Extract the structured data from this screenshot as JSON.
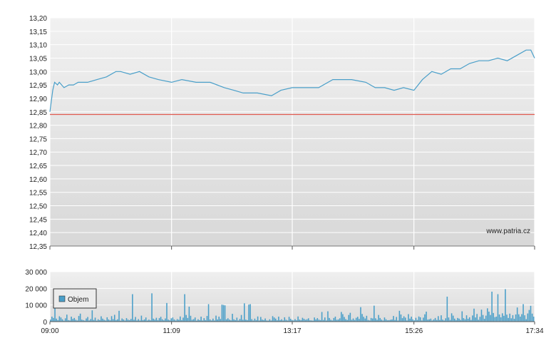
{
  "chart_data": [
    {
      "type": "line",
      "watermark": "www.patria.cz",
      "ylim": [
        12.35,
        13.2
      ],
      "y_ticks": [
        "13,20",
        "13,15",
        "13,10",
        "13,05",
        "13,00",
        "12,95",
        "12,90",
        "12,85",
        "12,80",
        "12,75",
        "12,70",
        "12,65",
        "12,60",
        "12,55",
        "12,50",
        "12,45",
        "12,40",
        "12,35"
      ],
      "x_ticks": [
        "09:00",
        "11:09",
        "13:17",
        "15:26",
        "17:34"
      ],
      "reference_line": 12.84,
      "grid": true,
      "colors": {
        "line": "#4a9fc9",
        "reference": "#e05a4f",
        "grid": "#ffffff"
      },
      "series": [
        {
          "x": [
            "09:00",
            "09:03",
            "09:05",
            "09:08",
            "09:10",
            "09:15",
            "09:20",
            "09:25",
            "09:30",
            "09:40",
            "09:50",
            "10:00",
            "10:10",
            "10:15",
            "10:25",
            "10:35",
            "10:45",
            "10:55",
            "11:09",
            "11:20",
            "11:35",
            "11:50",
            "12:05",
            "12:15",
            "12:25",
            "12:40",
            "12:55",
            "13:05",
            "13:17",
            "13:30",
            "13:45",
            "14:00",
            "14:10",
            "14:20",
            "14:35",
            "14:45",
            "14:55",
            "15:05",
            "15:15",
            "15:26",
            "15:35",
            "15:45",
            "15:55",
            "16:05",
            "16:15",
            "16:25",
            "16:35",
            "16:45",
            "16:55",
            "17:05",
            "17:15",
            "17:25",
            "17:30",
            "17:34"
          ],
          "values": [
            12.85,
            12.93,
            12.96,
            12.95,
            12.96,
            12.94,
            12.95,
            12.95,
            12.96,
            12.96,
            12.97,
            12.98,
            13.0,
            13.0,
            12.99,
            13.0,
            12.98,
            12.97,
            12.96,
            12.97,
            12.96,
            12.96,
            12.94,
            12.93,
            12.92,
            12.92,
            12.91,
            12.93,
            12.94,
            12.94,
            12.94,
            12.97,
            12.97,
            12.97,
            12.96,
            12.94,
            12.94,
            12.93,
            12.94,
            12.93,
            12.97,
            13.0,
            12.99,
            13.01,
            13.01,
            13.03,
            13.04,
            13.04,
            13.05,
            13.04,
            13.06,
            13.08,
            13.08,
            13.05
          ]
        }
      ]
    },
    {
      "type": "bar",
      "ylim": [
        0,
        30000
      ],
      "y_ticks": [
        "30 000",
        "20 000",
        "10 000",
        "0"
      ],
      "x_ticks": [
        "09:00",
        "11:09",
        "13:17",
        "15:26",
        "17:34"
      ],
      "grid": true,
      "colors": {
        "bar": "#4a9fc9",
        "legend_swatch": "#4a9fc9"
      },
      "legend": {
        "label": "Objem",
        "position": "top-left"
      },
      "series": [
        {
          "name": "Objem",
          "x_start": "09:00",
          "x_end": "17:34",
          "values": [
            1200,
            3000,
            2200,
            8800,
            1800,
            900,
            3200,
            2500,
            1400,
            600,
            2000,
            4200,
            900,
            700,
            3000,
            1600,
            2200,
            1100,
            700,
            3400,
            4800,
            1200,
            900,
            600,
            1900,
            2800,
            700,
            1500,
            6800,
            1000,
            2400,
            600,
            1400,
            900,
            3200,
            1800,
            1100,
            700,
            2600,
            1300,
            800,
            3300,
            1500,
            4100,
            900,
            1400,
            6500,
            600,
            1900,
            1300,
            700,
            2100,
            1200,
            900,
            1600,
            16500,
            1100,
            2800,
            700,
            1500,
            700,
            3600,
            900,
            1300,
            2500,
            700,
            1200,
            800,
            17000,
            1800,
            1200,
            2300,
            900,
            2100,
            2900,
            1400,
            800,
            1900,
            11200,
            1200,
            800,
            2000,
            2500,
            1300,
            700,
            1500,
            1100,
            3100,
            900,
            2400,
            16500,
            4000,
            2200,
            9000,
            3500,
            1100,
            1500,
            2500,
            600,
            1400,
            900,
            3000,
            700,
            2100,
            900,
            3400,
            10500,
            1300,
            700,
            1800,
            700,
            3600,
            1300,
            3000,
            1600,
            10200,
            10000,
            9800,
            1400,
            2000,
            1200,
            800,
            4700,
            1400,
            900,
            2400,
            700,
            1600,
            4000,
            1100,
            11000,
            1200,
            900,
            10200,
            10500,
            1500,
            700,
            1800,
            900,
            3100,
            700,
            2800,
            1200,
            900,
            1900,
            700,
            600,
            1400,
            700,
            3300,
            2500,
            1800,
            800,
            3000,
            900,
            1400,
            700,
            2600,
            1100,
            700,
            2900,
            1700,
            1000,
            700,
            1500,
            800,
            3100,
            1200,
            900,
            2300,
            1700,
            1100,
            1400,
            2000,
            800,
            700,
            600,
            2500,
            1300,
            2100,
            1200,
            900,
            5800,
            1000,
            2500,
            700,
            6200,
            2200,
            1100,
            700,
            2200,
            3000,
            1100,
            1300,
            2000,
            5800,
            4500,
            2800,
            1500,
            1000,
            4000,
            5300,
            1100,
            1900,
            1000,
            2300,
            2900,
            1600,
            8700,
            4600,
            2900,
            1900,
            3500,
            1000,
            700,
            2200,
            1900,
            9600,
            2000,
            1100,
            4000,
            2200,
            1200,
            700,
            2500,
            1400,
            800,
            900,
            1100,
            1300,
            3400,
            1000,
            2800,
            700,
            6500,
            4300,
            2100,
            3200,
            2400,
            700,
            4500,
            1800,
            3000,
            1400,
            800,
            2300,
            1000,
            3100,
            2600,
            700,
            2400,
            4400,
            6000,
            1200,
            1400,
            1800,
            700,
            1300,
            2200,
            1000,
            3300,
            1000,
            3800,
            1200,
            700,
            2000,
            15000,
            2500,
            1000,
            5000,
            3600,
            1800,
            900,
            2200,
            1800,
            1000,
            6200,
            2100,
            1400,
            3800,
            1700,
            2600,
            1000,
            3700,
            7800,
            2500,
            4600,
            1100,
            2900,
            7200,
            4000,
            1700,
            3600,
            8000,
            6000,
            4000,
            18000,
            5200,
            2700,
            3000,
            16500,
            4300,
            2600,
            5000,
            3500,
            19500,
            4200,
            2200,
            4800,
            2000,
            3900,
            1700,
            4300,
            8500,
            4400,
            3000,
            4500,
            10500,
            3800,
            1500,
            4900,
            7000,
            9500,
            4800,
            3000
          ]
        }
      ]
    }
  ]
}
